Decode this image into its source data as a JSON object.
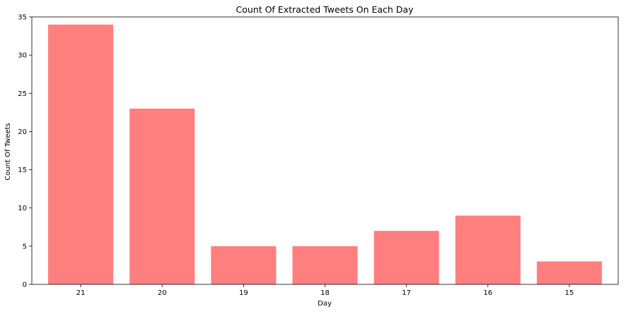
{
  "chart_data": {
    "type": "bar",
    "title": "Count Of Extracted Tweets On Each Day",
    "xlabel": "Day",
    "ylabel": "Count Of Tweets",
    "categories": [
      "21",
      "20",
      "19",
      "18",
      "17",
      "16",
      "15"
    ],
    "values": [
      34,
      23,
      5,
      5,
      7,
      9,
      3
    ],
    "ylim": [
      0,
      35
    ],
    "yticks": [
      0,
      5,
      10,
      15,
      20,
      25,
      30,
      35
    ],
    "grid": false,
    "legend": "none",
    "bar_color": "#ff7f7f"
  }
}
